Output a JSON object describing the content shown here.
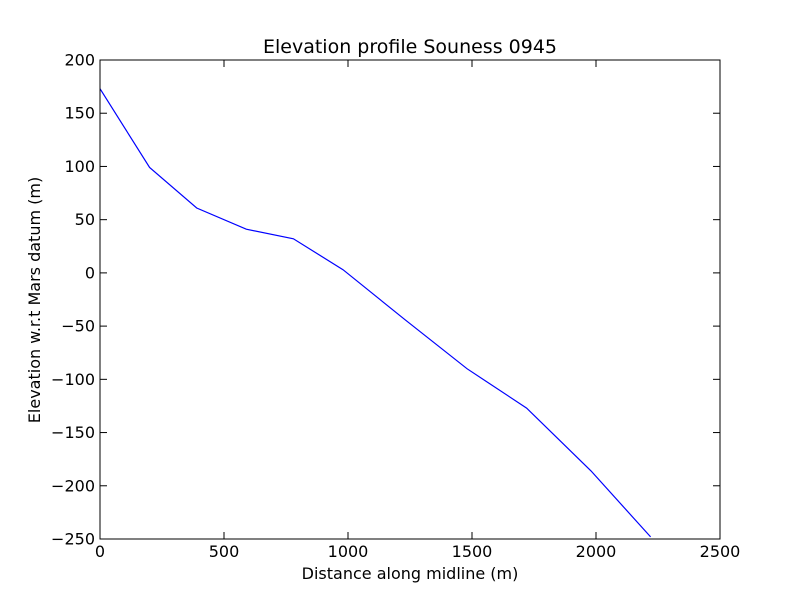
{
  "chart_data": {
    "type": "line",
    "title": "Elevation profile Souness 0945",
    "xlabel": "Distance along midline (m)",
    "ylabel": "Elevation w.r.t Mars datum (m)",
    "xlim": [
      0,
      2500
    ],
    "ylim": [
      -250,
      200
    ],
    "xticks": [
      0,
      500,
      1000,
      1500,
      2000,
      2500
    ],
    "yticks": [
      200,
      150,
      100,
      50,
      0,
      -50,
      -100,
      -150,
      -200,
      -250
    ],
    "xtick_labels": [
      "0",
      "500",
      "1000",
      "1500",
      "2000",
      "2500"
    ],
    "ytick_labels": [
      "200",
      "150",
      "100",
      "50",
      "0",
      "−50",
      "−100",
      "−150",
      "−200",
      "−250"
    ],
    "grid": false,
    "legend": "none",
    "series": [
      {
        "color": "#0000ff",
        "x": [
          0,
          200,
          390,
          590,
          780,
          980,
          1230,
          1480,
          1720,
          1980,
          2220
        ],
        "y": [
          173,
          99,
          61,
          41,
          32,
          3,
          -44,
          -90,
          -127,
          -186,
          -248
        ]
      }
    ]
  }
}
